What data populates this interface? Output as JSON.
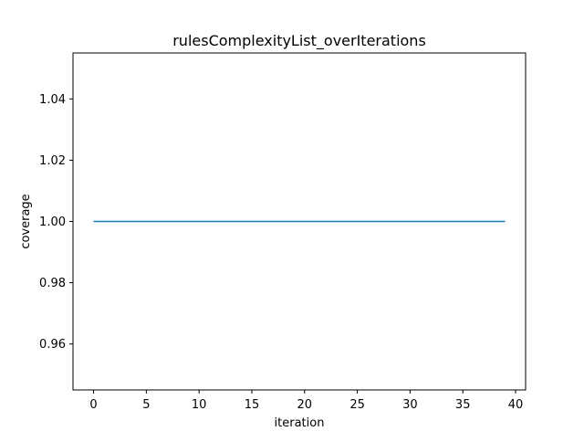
{
  "chart_data": {
    "type": "line",
    "title": "rulesComplexityList_overIterations",
    "xlabel": "iteration",
    "ylabel": "coverage",
    "xlim": [
      -1.95,
      40.95
    ],
    "ylim": [
      0.945,
      1.055
    ],
    "xticks": [
      0,
      5,
      10,
      15,
      20,
      25,
      30,
      35,
      40
    ],
    "xtick_labels": [
      "0",
      "5",
      "10",
      "15",
      "20",
      "25",
      "30",
      "35",
      "40"
    ],
    "yticks": [
      0.96,
      0.98,
      1.0,
      1.02,
      1.04
    ],
    "ytick_labels": [
      "0.96",
      "0.98",
      "1.00",
      "1.02",
      "1.04"
    ],
    "grid": false,
    "legend": "none",
    "series": [
      {
        "color": "#1f77b4",
        "x": [
          0,
          39
        ],
        "y": [
          1.0,
          1.0
        ]
      }
    ]
  }
}
